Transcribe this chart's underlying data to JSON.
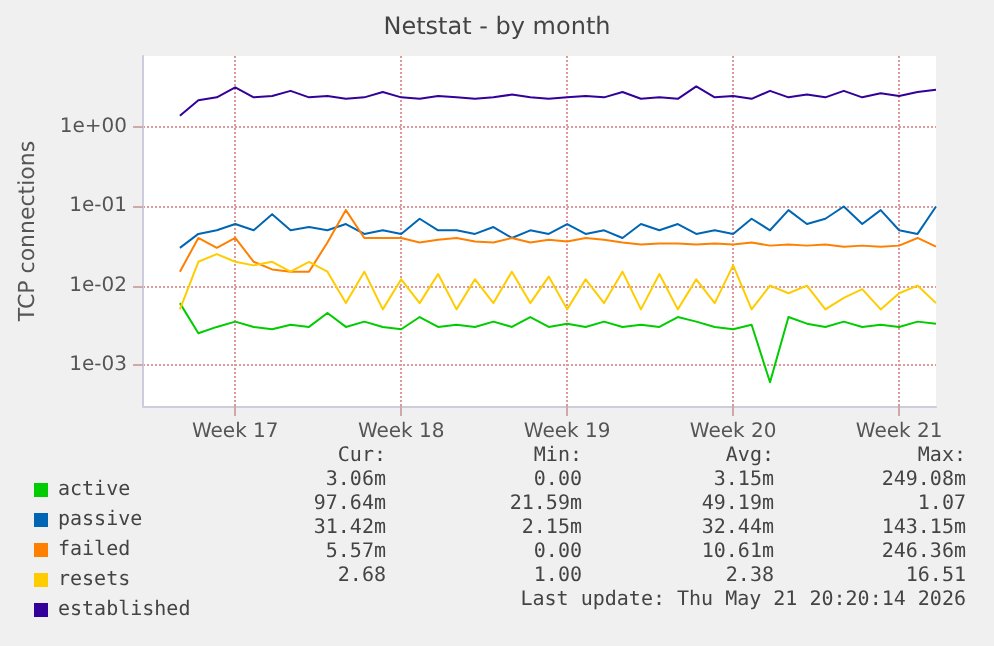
{
  "chart_data": {
    "type": "line",
    "title": "Netstat - by month",
    "ylabel": "TCP connections",
    "categories": [
      null,
      null,
      null,
      null,
      null,
      "Week 17",
      null,
      null,
      null,
      null,
      null,
      null,
      null,
      null,
      "Week 18",
      null,
      null,
      null,
      null,
      null,
      null,
      null,
      null,
      "Week 19",
      null,
      null,
      null,
      null,
      null,
      null,
      null,
      null,
      "Week 20",
      null,
      null,
      null,
      null,
      null,
      null,
      null,
      null,
      "Week 21",
      null,
      null
    ],
    "series": [
      {
        "name": "active",
        "color": "#00cc00",
        "values": [
          null,
          null,
          0.006,
          0.0025,
          0.003,
          0.0035,
          0.003,
          0.0028,
          0.0032,
          0.003,
          0.0045,
          0.003,
          0.0035,
          0.003,
          0.0028,
          0.004,
          0.003,
          0.0032,
          0.003,
          0.0035,
          0.003,
          0.004,
          0.003,
          0.0033,
          0.003,
          0.0035,
          0.003,
          0.0032,
          0.003,
          0.004,
          0.0035,
          0.003,
          0.0028,
          0.0032,
          0.0006,
          0.004,
          0.0033,
          0.003,
          0.0035,
          0.003,
          0.0032,
          0.003,
          0.0035,
          0.0033
        ]
      },
      {
        "name": "passive",
        "color": "#0066b3",
        "values": [
          null,
          null,
          0.03,
          0.045,
          0.05,
          0.06,
          0.05,
          0.08,
          0.05,
          0.055,
          0.05,
          0.06,
          0.045,
          0.05,
          0.045,
          0.07,
          0.05,
          0.05,
          0.045,
          0.055,
          0.04,
          0.05,
          0.045,
          0.06,
          0.045,
          0.05,
          0.04,
          0.06,
          0.05,
          0.06,
          0.045,
          0.05,
          0.045,
          0.07,
          0.05,
          0.09,
          0.06,
          0.07,
          0.1,
          0.06,
          0.09,
          0.05,
          0.045,
          0.1
        ]
      },
      {
        "name": "failed",
        "color": "#ff8000",
        "values": [
          null,
          null,
          0.015,
          0.04,
          0.03,
          0.04,
          0.02,
          0.016,
          0.015,
          0.015,
          0.035,
          0.09,
          0.04,
          0.04,
          0.04,
          0.035,
          0.038,
          0.04,
          0.036,
          0.035,
          0.04,
          0.035,
          0.038,
          0.036,
          0.04,
          0.038,
          0.035,
          0.033,
          0.034,
          0.034,
          0.033,
          0.034,
          0.033,
          0.035,
          0.032,
          0.033,
          0.032,
          0.033,
          0.031,
          0.032,
          0.031,
          0.032,
          0.04,
          0.031
        ]
      },
      {
        "name": "resets",
        "color": "#ffcc00",
        "values": [
          null,
          null,
          0.005,
          0.02,
          0.025,
          0.02,
          0.018,
          0.02,
          0.015,
          0.02,
          0.015,
          0.006,
          0.015,
          0.005,
          0.012,
          0.006,
          0.014,
          0.005,
          0.012,
          0.006,
          0.015,
          0.006,
          0.013,
          0.005,
          0.012,
          0.006,
          0.015,
          0.005,
          0.014,
          0.005,
          0.012,
          0.006,
          0.018,
          0.005,
          0.01,
          0.008,
          0.01,
          0.005,
          0.007,
          0.009,
          0.005,
          0.008,
          0.01,
          0.006
        ]
      },
      {
        "name": "established",
        "color": "#330099",
        "values": [
          null,
          null,
          1.4,
          2.2,
          2.4,
          3.2,
          2.4,
          2.5,
          2.9,
          2.4,
          2.5,
          2.3,
          2.4,
          2.8,
          2.4,
          2.3,
          2.5,
          2.4,
          2.3,
          2.4,
          2.6,
          2.4,
          2.3,
          2.4,
          2.5,
          2.4,
          2.8,
          2.3,
          2.4,
          2.3,
          3.3,
          2.4,
          2.5,
          2.3,
          2.9,
          2.4,
          2.6,
          2.4,
          2.9,
          2.4,
          2.7,
          2.5,
          2.8,
          3
        ]
      }
    ],
    "ylim": [
      0.0003,
      8
    ],
    "yticks": [
      {
        "value": 0.001,
        "label": "1e-03"
      },
      {
        "value": 0.01,
        "label": "1e-02"
      },
      {
        "value": 0.1,
        "label": "1e-01"
      },
      {
        "value": 1,
        "label": "1e+00"
      }
    ],
    "log": "y",
    "grid": true,
    "legend": "bottom left",
    "marker": "none",
    "line_style": "solid",
    "annotations": [
      "Cur:",
      "Min:",
      "Avg:",
      "Max:",
      "3.06m",
      "0.00",
      "3.15m",
      "249.08m",
      "97.64m",
      "21.59m",
      "49.19m",
      "1.07",
      "31.42m",
      "2.15m",
      "32.44m",
      "143.15m",
      "5.57m",
      "0.00",
      "10.61m",
      "246.36m",
      "2.68",
      "1.00",
      "2.38",
      "16.51",
      "Last update: Thu May 21 20:20:14 2026"
    ]
  }
}
